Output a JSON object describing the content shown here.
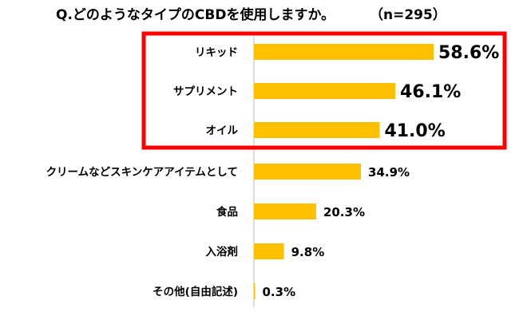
{
  "chart_data": {
    "type": "bar",
    "orientation": "horizontal",
    "title": "Q.どのようなタイプのCBDを使用しますか。",
    "sample_size": "（n=295）",
    "categories": [
      "リキッド",
      "サプリメント",
      "オイル",
      "クリームなどスキンケアアイテムとして",
      "食品",
      "入浴剤",
      "その他(自由記述)"
    ],
    "values": [
      58.6,
      46.1,
      41.0,
      34.9,
      20.3,
      9.8,
      0.3
    ],
    "value_labels": [
      "58.6%",
      "46.1%",
      "41.0%",
      "34.9%",
      "20.3%",
      "9.8%",
      "0.3%"
    ],
    "highlighted_categories": [
      "リキッド",
      "サプリメント",
      "オイル"
    ],
    "xlim": [
      0,
      100
    ],
    "grid": false,
    "legend": "none",
    "colors": {
      "bar": "#FFC000",
      "highlight_box": "#FF0000",
      "axis": "#BFBFBF",
      "text": "#000000"
    }
  }
}
